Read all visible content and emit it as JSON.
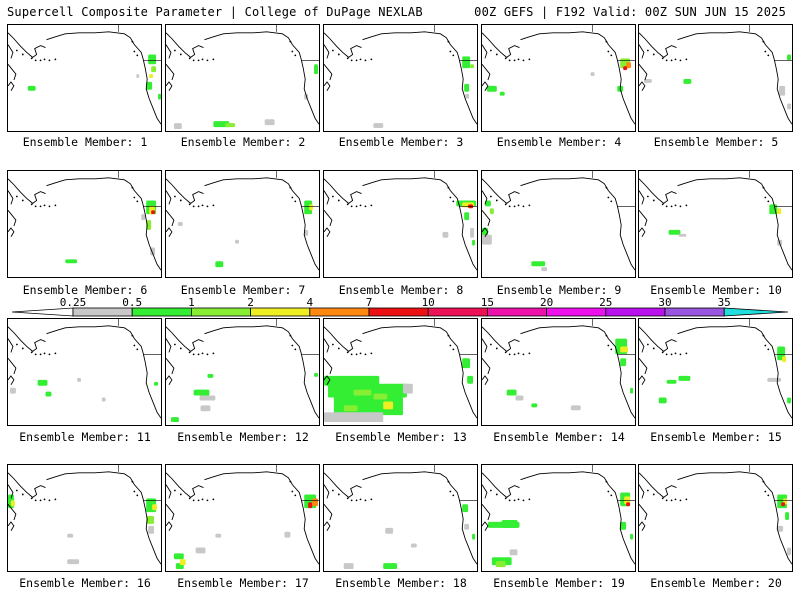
{
  "header": {
    "left": "Supercell Composite Parameter | College of DuPage NEXLAB",
    "right": "00Z GEFS | F192 Valid: 00Z SUN JUN 15 2025"
  },
  "colorbar": {
    "labels": [
      "0.25",
      "0.5",
      "1",
      "2",
      "4",
      "7",
      "10",
      "15",
      "20",
      "25",
      "30",
      "35"
    ],
    "colors": [
      "#c8c8c8",
      "#33ee33",
      "#88ee33",
      "#eeee22",
      "#ff8811",
      "#ee1111",
      "#ee1155",
      "#ee11aa",
      "#ee11ee",
      "#bb11ee",
      "#9955dd",
      "#22dddd"
    ]
  },
  "panels": [
    {
      "caption": "Ensemble Member: 1",
      "member": 1
    },
    {
      "caption": "Ensemble Member: 2",
      "member": 2
    },
    {
      "caption": "Ensemble Member: 3",
      "member": 3
    },
    {
      "caption": "Ensemble Member: 4",
      "member": 4
    },
    {
      "caption": "Ensemble Member: 5",
      "member": 5
    },
    {
      "caption": "Ensemble Member: 6",
      "member": 6
    },
    {
      "caption": "Ensemble Member: 7",
      "member": 7
    },
    {
      "caption": "Ensemble Member: 8",
      "member": 8
    },
    {
      "caption": "Ensemble Member: 9",
      "member": 9
    },
    {
      "caption": "Ensemble Member: 10",
      "member": 10
    },
    {
      "caption": "Ensemble Member: 11",
      "member": 11
    },
    {
      "caption": "Ensemble Member: 12",
      "member": 12
    },
    {
      "caption": "Ensemble Member: 13",
      "member": 13
    },
    {
      "caption": "Ensemble Member: 14",
      "member": 14
    },
    {
      "caption": "Ensemble Member: 15",
      "member": 15
    },
    {
      "caption": "Ensemble Member: 16",
      "member": 16
    },
    {
      "caption": "Ensemble Member: 17",
      "member": 17
    },
    {
      "caption": "Ensemble Member: 18",
      "member": 18
    },
    {
      "caption": "Ensemble Member: 19",
      "member": 19
    },
    {
      "caption": "Ensemble Member: 20",
      "member": 20
    }
  ]
}
